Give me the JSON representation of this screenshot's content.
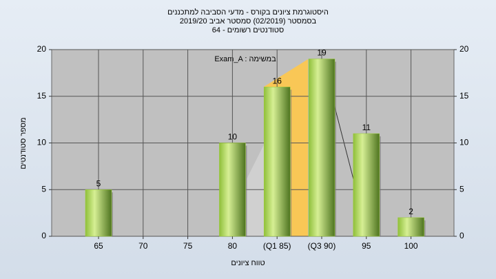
{
  "chart_data": {
    "type": "bar",
    "title": "היסטוגרמת ציונים בקורס - מדעי הסביבה למתכננים",
    "subtitle": "בסמסטר  (02/2019)  סמסטר אביב 2019/20",
    "subtitle2": "סטודנטים רשומים - 64",
    "annotation": "Exam_A : במשימה",
    "x_label": "טווח ציונים",
    "y_label": "מספר סטודנטים",
    "categories": [
      "65",
      "70",
      "75",
      "80",
      "(Q1 85)",
      "(Q3 90)",
      "95",
      "100"
    ],
    "values": [
      5,
      0,
      0,
      10,
      16,
      19,
      11,
      2
    ],
    "color": "#9acd32",
    "ylim": [
      0,
      20
    ],
    "yticks": [
      0,
      5,
      10,
      15,
      20
    ],
    "grid": true
  }
}
